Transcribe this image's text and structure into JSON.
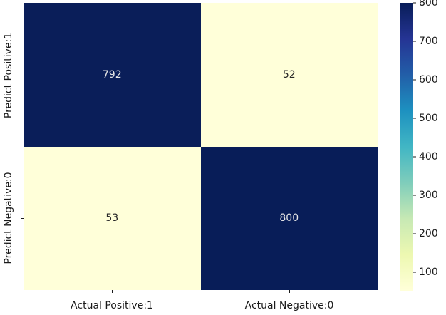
{
  "chart_data": {
    "type": "heatmap",
    "title": "",
    "rows": [
      "Predict Positive:1",
      "Predict Negative:0"
    ],
    "cols": [
      "Actual Positive:1",
      "Actual Negative:0"
    ],
    "values": [
      [
        792,
        52
      ],
      [
        53,
        800
      ]
    ],
    "colormap": "YlGnBu",
    "vmin": 52,
    "vmax": 800,
    "cell_colors": [
      [
        "#0a1e59",
        "#ffffd9"
      ],
      [
        "#ffffd9",
        "#081d58"
      ]
    ],
    "cell_text_colors": [
      [
        "#e6e6e6",
        "#262626"
      ],
      [
        "#262626",
        "#e6e6e6"
      ]
    ],
    "colorbar_ticks": [
      100,
      200,
      300,
      400,
      500,
      600,
      700,
      800
    ],
    "colormap_stops": [
      {
        "pos": 0.0,
        "color": "#ffffd9"
      },
      {
        "pos": 0.125,
        "color": "#edf8b1"
      },
      {
        "pos": 0.25,
        "color": "#c7e9b4"
      },
      {
        "pos": 0.375,
        "color": "#7fcdbb"
      },
      {
        "pos": 0.5,
        "color": "#41b6c4"
      },
      {
        "pos": 0.625,
        "color": "#1d91c0"
      },
      {
        "pos": 0.75,
        "color": "#225ea8"
      },
      {
        "pos": 0.875,
        "color": "#253494"
      },
      {
        "pos": 1.0,
        "color": "#081d58"
      }
    ],
    "legend_position": "right",
    "grid": false
  }
}
